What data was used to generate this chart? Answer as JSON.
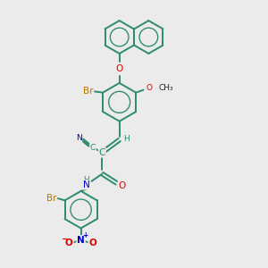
{
  "bg_color": "#ebebeb",
  "bond_color": "#2e8b6e",
  "label_colors": {
    "O": "#dd0000",
    "N": "#0000cc",
    "Br": "#bb7700",
    "C": "#2e8b6e",
    "H": "#2e8b6e"
  },
  "bond_lw": 1.4,
  "font_size": 7.5,
  "small_font": 6.5
}
